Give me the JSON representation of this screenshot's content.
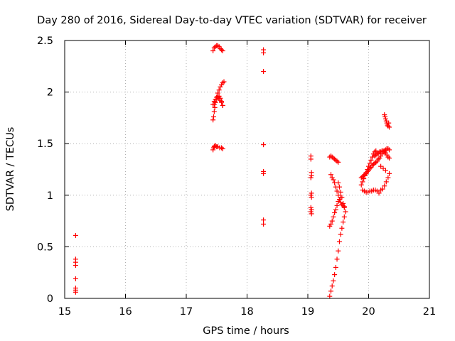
{
  "chart_data": {
    "type": "scatter",
    "title": "Day 280 of 2016, Sidereal Day-to-day VTEC variation (SDTVAR) for receiver",
    "xlabel": "GPS time / hours",
    "ylabel": "SDTVAR / TECUs",
    "xlim": [
      15,
      21
    ],
    "ylim": [
      0,
      2.5
    ],
    "x_ticks": [
      15,
      16,
      17,
      18,
      19,
      20,
      21
    ],
    "x_tick_labels": [
      "15",
      "16",
      "17",
      "18",
      "19",
      "20",
      "21"
    ],
    "y_ticks": [
      0,
      0.5,
      1,
      1.5,
      2,
      2.5
    ],
    "y_tick_labels": [
      "0",
      "0.5",
      "1",
      "1.5",
      "2",
      "2.5"
    ],
    "grid": true,
    "marker": "plus",
    "series": [
      {
        "name": "SDTVAR",
        "color": "#ff0000",
        "x": [
          15.18,
          15.18,
          15.18,
          15.18,
          15.18,
          15.18,
          15.18,
          15.18,
          17.44,
          17.46,
          17.48,
          17.5,
          17.52,
          17.54,
          17.56,
          17.58,
          17.6,
          17.44,
          17.45,
          17.46,
          17.47,
          17.48,
          17.5,
          17.52,
          17.54,
          17.56,
          17.58,
          17.6,
          17.62,
          17.46,
          17.48,
          17.5,
          17.52,
          17.54,
          17.56,
          17.58,
          17.6,
          17.44,
          17.45,
          17.46,
          17.47,
          17.48,
          17.5,
          17.52,
          17.55,
          17.58,
          17.6,
          17.44,
          17.46,
          17.48,
          17.5,
          17.52,
          17.54,
          17.56,
          17.58,
          17.6,
          18.27,
          18.27,
          18.27,
          18.27,
          18.27,
          18.27,
          18.27,
          18.27,
          19.05,
          19.05,
          19.06,
          19.06,
          19.05,
          19.06,
          19.05,
          19.06,
          19.05,
          19.06,
          19.05,
          19.06,
          19.36,
          19.38,
          19.4,
          19.42,
          19.44,
          19.46,
          19.48,
          19.5,
          19.38,
          19.4,
          19.42,
          19.44,
          19.46,
          19.48,
          19.5,
          19.52,
          19.54,
          19.56,
          19.58,
          19.6,
          19.36,
          19.38,
          19.4,
          19.42,
          19.44,
          19.46,
          19.48,
          19.5,
          19.52,
          19.54,
          19.5,
          19.52,
          19.54,
          19.56,
          19.58,
          19.6,
          19.36,
          19.38,
          19.4,
          19.42,
          19.44,
          19.46,
          19.48,
          19.5,
          19.52,
          19.54,
          19.56,
          19.58,
          19.6,
          19.62,
          19.88,
          19.9,
          19.92,
          19.94,
          19.96,
          19.98,
          20.0,
          20.02,
          20.04,
          20.06,
          20.08,
          20.1,
          20.12,
          19.88,
          19.9,
          19.92,
          19.94,
          19.96,
          19.98,
          20.0,
          20.02,
          20.04,
          20.06,
          20.08,
          20.1,
          20.12,
          20.14,
          20.16,
          20.18,
          20.2,
          20.22,
          20.24,
          20.26,
          20.28,
          20.3,
          20.32,
          20.34,
          19.9,
          19.93,
          19.96,
          19.99,
          20.02,
          20.05,
          20.08,
          20.11,
          20.14,
          20.17,
          20.2,
          20.23,
          20.26,
          20.29,
          20.32,
          20.34,
          20.1,
          20.12,
          20.14,
          20.16,
          20.18,
          20.2,
          20.22,
          20.24,
          20.26,
          20.28,
          20.3,
          20.32,
          20.34,
          20.2,
          20.24,
          20.28,
          20.26,
          20.28,
          20.3,
          20.32,
          20.34,
          20.27,
          20.29,
          20.31,
          20.33
        ],
        "y": [
          0.61,
          0.38,
          0.35,
          0.32,
          0.19,
          0.1,
          0.08,
          0.06,
          2.4,
          2.43,
          2.44,
          2.45,
          2.45,
          2.44,
          2.42,
          2.41,
          2.4,
          1.73,
          1.76,
          1.81,
          1.85,
          1.9,
          1.95,
          1.99,
          2.02,
          2.05,
          2.07,
          2.09,
          2.1,
          1.88,
          1.9,
          1.93,
          1.95,
          1.96,
          1.94,
          1.91,
          1.87,
          1.44,
          1.46,
          1.47,
          1.48,
          1.48,
          1.47,
          1.47,
          1.46,
          1.46,
          1.45,
          1.88,
          1.91,
          1.93,
          1.95,
          1.96,
          1.94,
          1.92,
          1.9,
          1.87,
          2.41,
          2.38,
          2.2,
          1.49,
          1.23,
          1.21,
          0.76,
          0.72,
          1.38,
          1.35,
          1.22,
          1.19,
          1.17,
          1.02,
          1.0,
          0.98,
          0.88,
          0.86,
          0.84,
          0.82,
          1.37,
          1.38,
          1.37,
          1.36,
          1.35,
          1.34,
          1.33,
          1.32,
          1.2,
          1.17,
          1.15,
          1.12,
          1.08,
          1.04,
          1.0,
          0.96,
          0.93,
          0.91,
          0.9,
          0.89,
          0.7,
          0.72,
          0.75,
          0.79,
          0.83,
          0.86,
          0.9,
          0.94,
          0.96,
          0.98,
          1.12,
          1.08,
          1.03,
          0.98,
          0.92,
          0.88,
          0.02,
          0.07,
          0.12,
          0.17,
          0.23,
          0.3,
          0.38,
          0.46,
          0.55,
          0.62,
          0.68,
          0.74,
          0.79,
          0.84,
          1.1,
          1.13,
          1.16,
          1.19,
          1.22,
          1.25,
          1.28,
          1.31,
          1.34,
          1.37,
          1.4,
          1.42,
          1.43,
          1.17,
          1.18,
          1.19,
          1.2,
          1.21,
          1.23,
          1.24,
          1.26,
          1.27,
          1.29,
          1.3,
          1.31,
          1.32,
          1.33,
          1.35,
          1.36,
          1.38,
          1.4,
          1.42,
          1.43,
          1.44,
          1.45,
          1.45,
          1.44,
          1.05,
          1.04,
          1.03,
          1.03,
          1.04,
          1.04,
          1.05,
          1.05,
          1.04,
          1.02,
          1.05,
          1.06,
          1.09,
          1.13,
          1.17,
          1.21,
          1.38,
          1.39,
          1.4,
          1.41,
          1.42,
          1.42,
          1.43,
          1.43,
          1.42,
          1.41,
          1.39,
          1.37,
          1.36,
          1.28,
          1.26,
          1.24,
          1.78,
          1.74,
          1.7,
          1.67,
          1.66,
          1.76,
          1.72,
          1.68,
          1.7
        ]
      }
    ]
  }
}
